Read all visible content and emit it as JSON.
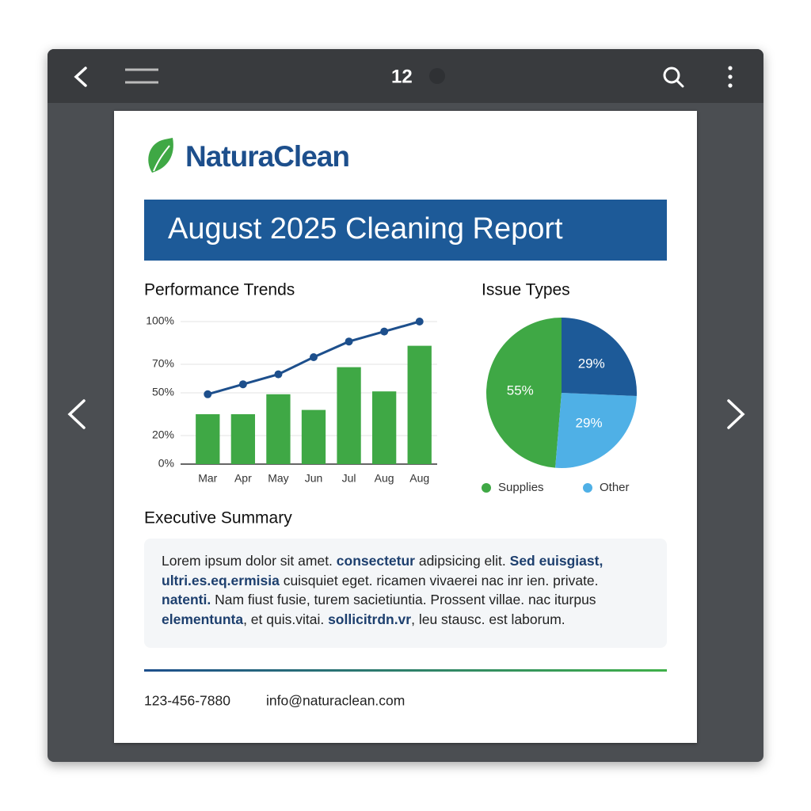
{
  "toolbar": {
    "page_label": "12"
  },
  "brand": "NaturaClean",
  "report_title": "August 2025 Cleaning Report",
  "chart_data": [
    {
      "type": "bar",
      "title": "Performance Trends",
      "categories": [
        "Mar",
        "Apr",
        "May",
        "Jun",
        "Jul",
        "Aug",
        "Aug"
      ],
      "series": [
        {
          "type": "bar",
          "color": "#3fa845",
          "values": [
            35,
            35,
            49,
            38,
            68,
            51,
            83
          ]
        },
        {
          "type": "line",
          "color": "#1d4f8c",
          "values": [
            49,
            56,
            63,
            75,
            86,
            93,
            100
          ]
        }
      ],
      "ylim": [
        0,
        100
      ],
      "yticks": [
        {
          "value": 0,
          "label": "0%"
        },
        {
          "value": 20,
          "label": "20%"
        },
        {
          "value": 50,
          "label": "50%"
        },
        {
          "value": 70,
          "label": "70%"
        },
        {
          "value": 100,
          "label": "100%"
        }
      ],
      "grid": true
    },
    {
      "type": "pie",
      "title": "Issue Types",
      "categories": [
        "Supplies",
        "Other",
        null
      ],
      "values": [
        55,
        29,
        29
      ],
      "value_labels": [
        "55%",
        "29%",
        "29%"
      ],
      "colors": [
        "#3fa845",
        "#4fb0e6",
        "#1d5a98"
      ]
    }
  ],
  "summary": {
    "title": "Executive Summary",
    "runs": [
      {
        "text": "Lorem ipsum dolor sit amet. ",
        "bold": false
      },
      {
        "text": "consectetur",
        "bold": true
      },
      {
        "text": " adipsicing elit. ",
        "bold": false
      },
      {
        "text": "Sed euisgiast,",
        "bold": true
      },
      {
        "text": " ultri.es.eq.ermisia",
        "bold": true
      },
      {
        "text": " cuisquiet eget. ricamen vivaerei nac inr ien. private. ",
        "bold": false
      },
      {
        "text": "natenti.",
        "bold": true
      },
      {
        "text": " Nam fiust fusie, turem sacietiuntia. Prossent villae. nac iturpus ",
        "bold": false
      },
      {
        "text": "elementunta",
        "bold": true
      },
      {
        "text": ", et quis.vitai. ",
        "bold": false
      },
      {
        "text": "sollicitrdn.vr",
        "bold": true
      },
      {
        "text": ", leu stausc. est laborum.",
        "bold": false
      }
    ]
  },
  "footer": {
    "phone": "123-456-7880",
    "email": "info@naturaclean.com"
  }
}
